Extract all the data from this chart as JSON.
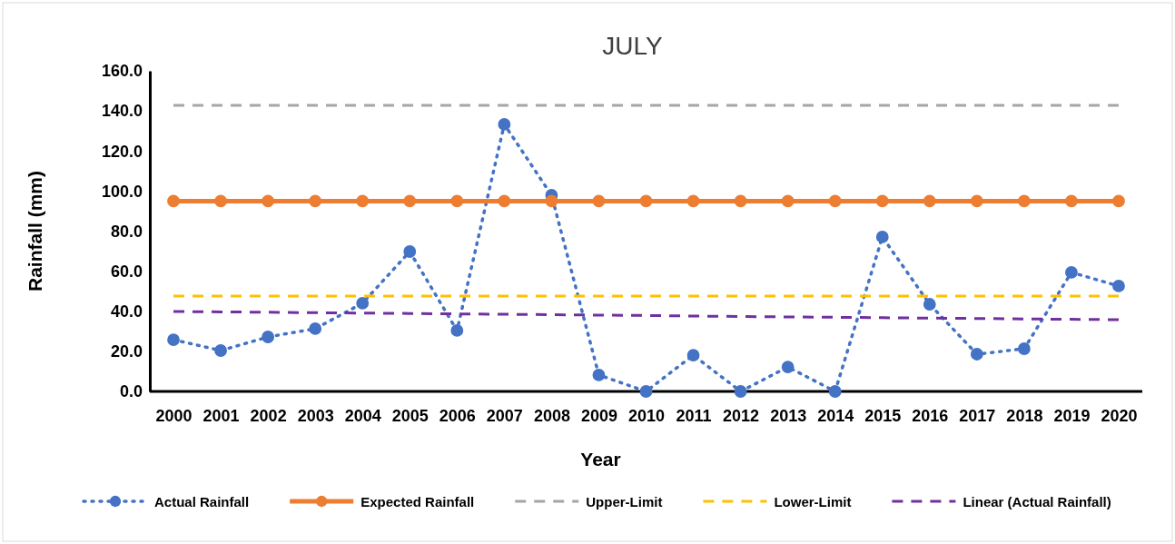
{
  "chart_data": {
    "type": "line",
    "title": "JULY",
    "xlabel": "Year",
    "ylabel": "Rainfall (mm)",
    "categories": [
      "2000",
      "2001",
      "2002",
      "2003",
      "2004",
      "2005",
      "2006",
      "2007",
      "2008",
      "2009",
      "2010",
      "2011",
      "2012",
      "2013",
      "2014",
      "2015",
      "2016",
      "2017",
      "2018",
      "2019",
      "2020"
    ],
    "series": [
      {
        "name": "Actual Rainfall",
        "color": "#4472c4",
        "marker": "circle",
        "line_style": "dotted",
        "values": [
          25.8,
          20.4,
          27.2,
          31.3,
          44.0,
          69.8,
          30.4,
          133.3,
          97.9,
          8.2,
          0,
          18.1,
          0,
          12.2,
          0,
          77.1,
          43.5,
          18.6,
          21.3,
          59.4,
          52.6
        ]
      },
      {
        "name": "Expected Rainfall",
        "color": "#ed7d31",
        "marker": "circle",
        "line_style": "solid",
        "values": [
          95,
          95,
          95,
          95,
          95,
          95,
          95,
          95,
          95,
          95,
          95,
          95,
          95,
          95,
          95,
          95,
          95,
          95,
          95,
          95,
          95
        ]
      },
      {
        "name": "Upper-Limit",
        "color": "#a5a5a5",
        "marker": "none",
        "line_style": "dashed",
        "values": [
          142.8,
          142.8,
          142.8,
          142.8,
          142.8,
          142.8,
          142.8,
          142.8,
          142.8,
          142.8,
          142.8,
          142.8,
          142.8,
          142.8,
          142.8,
          142.8,
          142.8,
          142.8,
          142.8,
          142.8,
          142.8
        ]
      },
      {
        "name": "Lower-Limit",
        "color": "#ffc000",
        "marker": "none",
        "line_style": "dashed",
        "values": [
          47.6,
          47.6,
          47.6,
          47.6,
          47.6,
          47.6,
          47.6,
          47.6,
          47.6,
          47.6,
          47.6,
          47.6,
          47.6,
          47.6,
          47.6,
          47.6,
          47.6,
          47.6,
          47.6,
          47.6,
          47.6
        ]
      },
      {
        "name": "Linear (Actual Rainfall)",
        "color": "#7030a0",
        "marker": "none",
        "line_style": "dashed",
        "values": [
          39.9,
          39.7,
          39.5,
          39.3,
          39.1,
          38.9,
          38.7,
          38.5,
          38.3,
          38.1,
          37.9,
          37.6,
          37.4,
          37.2,
          37.0,
          36.8,
          36.6,
          36.4,
          36.2,
          36.0,
          35.8
        ]
      }
    ],
    "ylim": [
      0,
      160
    ],
    "yticks": [
      {
        "value": 0,
        "label": "0.0"
      },
      {
        "value": 20,
        "label": "20.0"
      },
      {
        "value": 40,
        "label": "40.0"
      },
      {
        "value": 60,
        "label": "60.0"
      },
      {
        "value": 80,
        "label": "80.0"
      },
      {
        "value": 100,
        "label": "100.0"
      },
      {
        "value": 120,
        "label": "120.0"
      },
      {
        "value": 140,
        "label": "140.0"
      },
      {
        "value": 160,
        "label": "160.0"
      }
    ],
    "grid": false,
    "legend": "bottom"
  }
}
